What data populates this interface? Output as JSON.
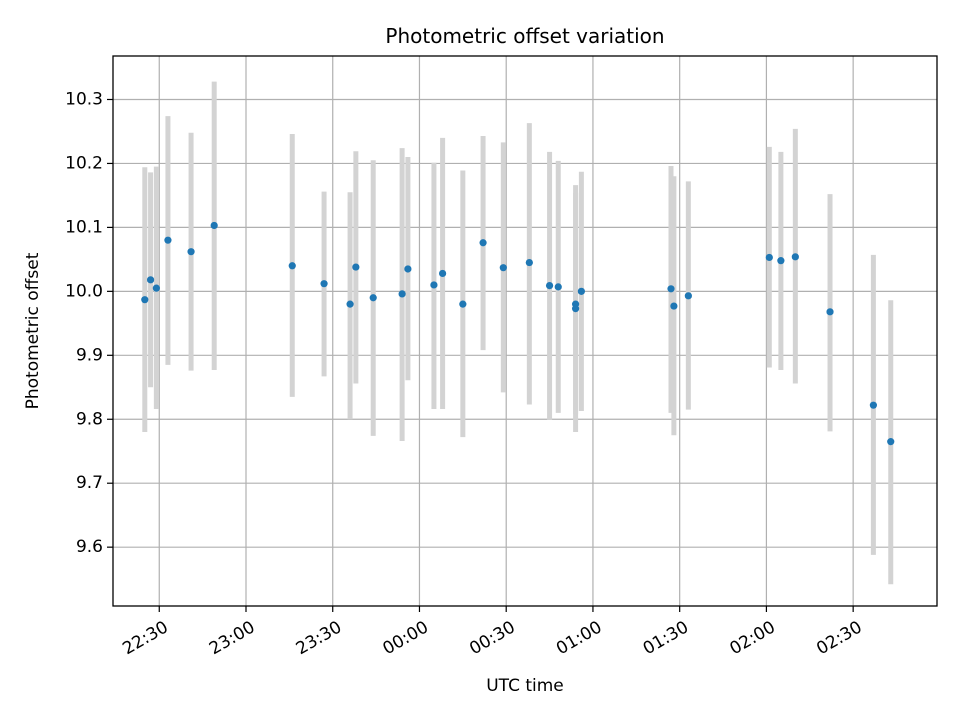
{
  "chart_data": {
    "type": "scatter",
    "title": "Photometric offset variation",
    "xlabel": "UTC time",
    "ylabel": "Photometric offset",
    "x_axis_type": "time",
    "x_start_date": "",
    "xlim": [
      "22:14",
      "02:59"
    ],
    "ylim": [
      9.508,
      10.368
    ],
    "grid": true,
    "x_tick_labels": [
      "22:30",
      "23:00",
      "23:30",
      "00:00",
      "00:30",
      "01:00",
      "01:30",
      "02:00",
      "02:30"
    ],
    "y_ticks": [
      9.6,
      9.7,
      9.8,
      9.9,
      10.0,
      10.1,
      10.2,
      10.3
    ],
    "y_tick_labels": [
      "9.6",
      "9.7",
      "9.8",
      "9.9",
      "10.0",
      "10.1",
      "10.2",
      "10.3"
    ],
    "colors": {
      "marker": "#1f77b4",
      "errorbar": "#d3d3d3"
    },
    "series": [
      {
        "points": [
          {
            "x": "22:25",
            "y": 9.987,
            "ylo": 9.78,
            "yhi": 10.194
          },
          {
            "x": "22:27",
            "y": 10.018,
            "ylo": 9.85,
            "yhi": 10.186
          },
          {
            "x": "22:29",
            "y": 10.005,
            "ylo": 9.816,
            "yhi": 10.195
          },
          {
            "x": "22:33",
            "y": 10.08,
            "ylo": 9.885,
            "yhi": 10.274
          },
          {
            "x": "22:41",
            "y": 10.062,
            "ylo": 9.876,
            "yhi": 10.248
          },
          {
            "x": "22:49",
            "y": 10.103,
            "ylo": 9.877,
            "yhi": 10.328
          },
          {
            "x": "23:16",
            "y": 10.04,
            "ylo": 9.835,
            "yhi": 10.246
          },
          {
            "x": "23:27",
            "y": 10.012,
            "ylo": 9.867,
            "yhi": 10.156
          },
          {
            "x": "23:36",
            "y": 9.98,
            "ylo": 9.8,
            "yhi": 10.155
          },
          {
            "x": "23:38",
            "y": 10.038,
            "ylo": 9.856,
            "yhi": 10.219
          },
          {
            "x": "23:44",
            "y": 9.99,
            "ylo": 9.774,
            "yhi": 10.205
          },
          {
            "x": "23:54",
            "y": 9.996,
            "ylo": 9.766,
            "yhi": 10.224
          },
          {
            "x": "23:56",
            "y": 10.035,
            "ylo": 9.861,
            "yhi": 10.21
          },
          {
            "x": "00:05",
            "y": 10.01,
            "ylo": 9.816,
            "yhi": 10.201
          },
          {
            "x": "00:08",
            "y": 10.028,
            "ylo": 9.816,
            "yhi": 10.24
          },
          {
            "x": "00:15",
            "y": 9.98,
            "ylo": 9.772,
            "yhi": 10.189
          },
          {
            "x": "00:22",
            "y": 10.076,
            "ylo": 9.908,
            "yhi": 10.243
          },
          {
            "x": "00:29",
            "y": 10.037,
            "ylo": 9.842,
            "yhi": 10.233
          },
          {
            "x": "00:38",
            "y": 10.045,
            "ylo": 9.823,
            "yhi": 10.263
          },
          {
            "x": "00:45",
            "y": 10.009,
            "ylo": 9.799,
            "yhi": 10.218
          },
          {
            "x": "00:48",
            "y": 10.007,
            "ylo": 9.81,
            "yhi": 10.204
          },
          {
            "x": "00:54",
            "y": 9.98,
            "ylo": 9.808,
            "yhi": 10.154
          },
          {
            "x": "00:54",
            "y": 9.973,
            "ylo": 9.78,
            "yhi": 10.166
          },
          {
            "x": "00:56",
            "y": 10.0,
            "ylo": 9.813,
            "yhi": 10.187
          },
          {
            "x": "01:27",
            "y": 10.004,
            "ylo": 9.81,
            "yhi": 10.196
          },
          {
            "x": "01:28",
            "y": 9.977,
            "ylo": 9.775,
            "yhi": 10.18
          },
          {
            "x": "01:33",
            "y": 9.993,
            "ylo": 9.815,
            "yhi": 10.172
          },
          {
            "x": "02:01",
            "y": 10.053,
            "ylo": 9.881,
            "yhi": 10.226
          },
          {
            "x": "02:05",
            "y": 10.048,
            "ylo": 9.877,
            "yhi": 10.218
          },
          {
            "x": "02:10",
            "y": 10.054,
            "ylo": 9.856,
            "yhi": 10.254
          },
          {
            "x": "02:22",
            "y": 9.968,
            "ylo": 9.781,
            "yhi": 10.152
          },
          {
            "x": "02:37",
            "y": 9.822,
            "ylo": 9.588,
            "yhi": 10.057
          },
          {
            "x": "02:43",
            "y": 9.765,
            "ylo": 9.542,
            "yhi": 9.986
          }
        ]
      }
    ]
  }
}
